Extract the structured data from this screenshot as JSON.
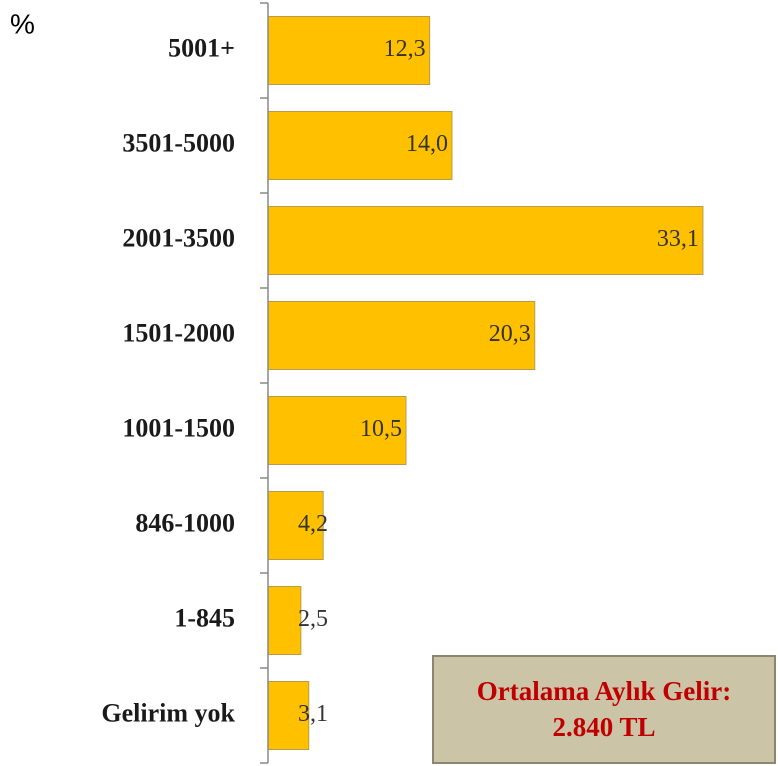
{
  "chart_data": {
    "type": "bar",
    "orientation": "horizontal",
    "unit": "%",
    "categories": [
      "5001+",
      "3501-5000",
      "2001-3500",
      "1501-2000",
      "1001-1500",
      "846-1000",
      "1-845",
      "Gelirim yok"
    ],
    "values": [
      12.3,
      14.0,
      33.1,
      20.3,
      10.5,
      4.2,
      2.5,
      3.1
    ],
    "value_labels": [
      "12,3",
      "14,0",
      "33,1",
      "20,3",
      "10,5",
      "4,2",
      "2,5",
      "3,1"
    ],
    "color": "#ffc000",
    "annotation": "Ortalama Aylık Gelir: 2.840 TL"
  }
}
